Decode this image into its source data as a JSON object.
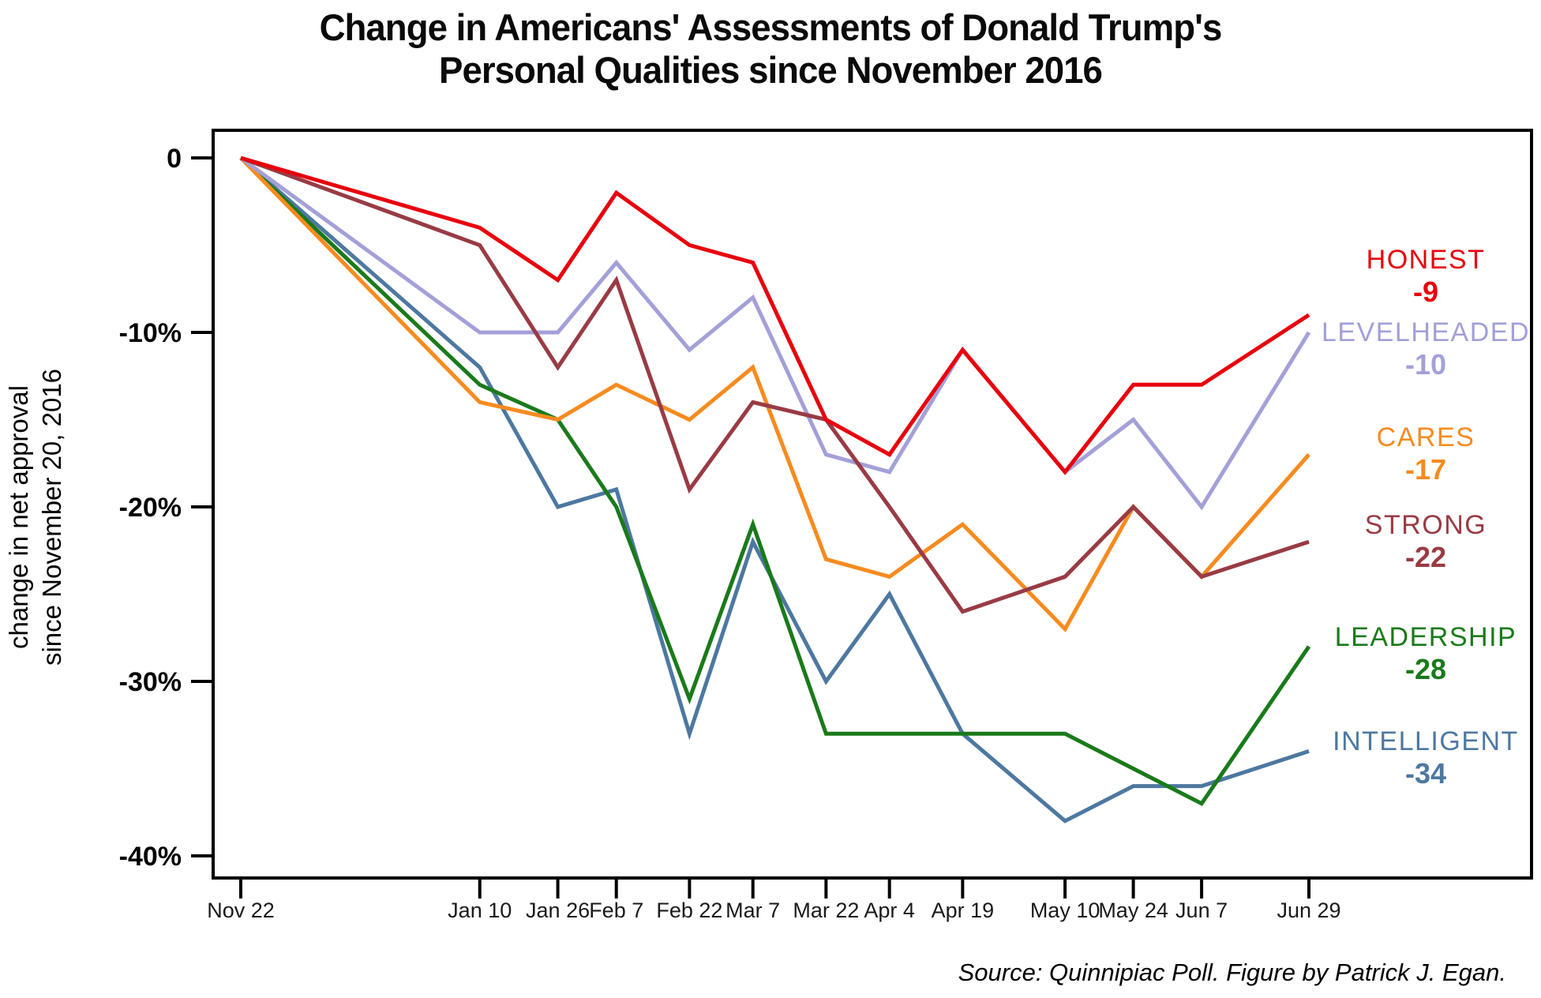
{
  "title": {
    "line1": "Change in Americans' Assessments of Donald Trump's",
    "line2": "Personal Qualities since November 2016"
  },
  "y_axis": {
    "label_line1": "change in net approval",
    "label_line2": "since November 20, 2016"
  },
  "source": "Source: Quinnipiac Poll. Figure by Patrick J. Egan.",
  "chart_data": {
    "type": "line",
    "x_labels": [
      "Nov 22",
      "Jan 10",
      "Jan 26",
      "Feb 7",
      "Feb 22",
      "Mar 7",
      "Mar 22",
      "Apr 4",
      "Apr 19",
      "May 10",
      "May 24",
      "Jun 7",
      "Jun 29"
    ],
    "x_day_offsets": [
      0,
      49,
      65,
      77,
      92,
      105,
      120,
      133,
      148,
      169,
      183,
      197,
      219
    ],
    "y_ticks": [
      {
        "label": "0",
        "value": 0
      },
      {
        "label": "-10%",
        "value": -10
      },
      {
        "label": "-20%",
        "value": -20
      },
      {
        "label": "-30%",
        "value": -30
      },
      {
        "label": "-40%",
        "value": -40
      }
    ],
    "ylim": [
      -41,
      1.5
    ],
    "grid": "off",
    "legend_position": "right-inside",
    "series": [
      {
        "name": "HONEST",
        "value_label": "-9",
        "color": "#e8000d",
        "values": [
          0,
          -4,
          -7,
          -2,
          -5,
          -6,
          -15,
          -17,
          -11,
          -18,
          -13,
          -13,
          -9
        ]
      },
      {
        "name": "LEVELHEADED",
        "value_label": "-10",
        "color": "#a3a0d8",
        "values": [
          0,
          -10,
          -10,
          -6,
          -11,
          -8,
          -17,
          -18,
          -11,
          -18,
          -15,
          -20,
          -10
        ]
      },
      {
        "name": "CARES",
        "value_label": "-17",
        "color": "#f78b1f",
        "values": [
          0,
          -14,
          -15,
          -13,
          -15,
          -12,
          -23,
          -24,
          -21,
          -27,
          -20,
          -24,
          -17
        ]
      },
      {
        "name": "STRONG",
        "value_label": "-22",
        "color": "#993b44",
        "values": [
          0,
          -5,
          -12,
          -7,
          -19,
          -14,
          -15,
          -20,
          -26,
          -24,
          -20,
          -24,
          -22
        ]
      },
      {
        "name": "LEADERSHIP",
        "value_label": "-28",
        "color": "#1a7a1a",
        "values": [
          0,
          -13,
          -15,
          -20,
          -31,
          -21,
          -33,
          -33,
          -33,
          -33,
          -35,
          -37,
          -28
        ]
      },
      {
        "name": "INTELLIGENT",
        "value_label": "-34",
        "color": "#4d78a0",
        "values": [
          0,
          -12,
          -20,
          -19,
          -33,
          -22,
          -30,
          -25,
          -33,
          -38,
          -36,
          -36,
          -34
        ]
      }
    ]
  }
}
